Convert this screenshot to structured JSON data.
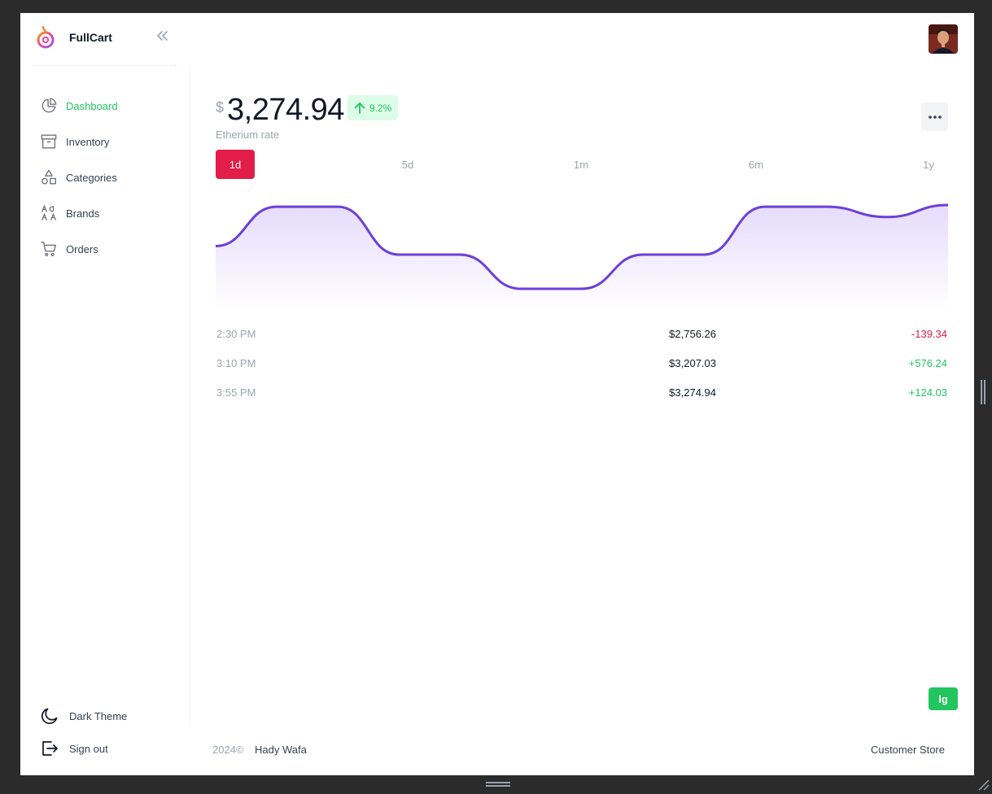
{
  "app": {
    "name": "FullCart"
  },
  "sidebar": {
    "items": [
      {
        "label": "Dashboard",
        "icon": "pie-chart-icon",
        "active": true
      },
      {
        "label": "Inventory",
        "icon": "archive-box-icon"
      },
      {
        "label": "Categories",
        "icon": "shapes-icon"
      },
      {
        "label": "Brands",
        "icon": "font-letters-icon"
      },
      {
        "label": "Orders",
        "icon": "cart-icon"
      }
    ],
    "bottom": [
      {
        "label": "Dark Theme",
        "icon": "moon-icon"
      },
      {
        "label": "Sign out",
        "icon": "sign-out-icon"
      }
    ]
  },
  "price": {
    "currency": "$",
    "value": "3,274.94",
    "change": "9.2%",
    "caption": "Etherium rate"
  },
  "ranges": [
    "1d",
    "5d",
    "1m",
    "6m",
    "1y"
  ],
  "active_range": "1d",
  "chart_data": {
    "type": "area",
    "x": [
      0,
      1,
      2,
      3,
      4,
      5,
      6,
      7,
      8,
      9,
      10,
      11,
      12
    ],
    "values": [
      2.5,
      4.8,
      4.8,
      2.0,
      2.0,
      0.0,
      0.0,
      2.0,
      2.0,
      4.8,
      4.8,
      4.2,
      4.9
    ],
    "grid": false,
    "color": "#6d3fd9"
  },
  "transactions": [
    {
      "time": "2:30 PM",
      "value": "$2,756.26",
      "delta": "-139.34",
      "direction": "down"
    },
    {
      "time": "3:10 PM",
      "value": "$3,207.03",
      "delta": "+576.24",
      "direction": "up"
    },
    {
      "time": "3:55 PM",
      "value": "$3,274.94",
      "delta": "+124.03",
      "direction": "up"
    }
  ],
  "badge": {
    "label": "lg"
  },
  "footer": {
    "year": "2024©",
    "author": "Hady Wafa",
    "store_link": "Customer Store"
  },
  "colors": {
    "accent_green": "#22c55e",
    "accent_red": "#e11d48",
    "chart_line": "#6d3fd9"
  }
}
